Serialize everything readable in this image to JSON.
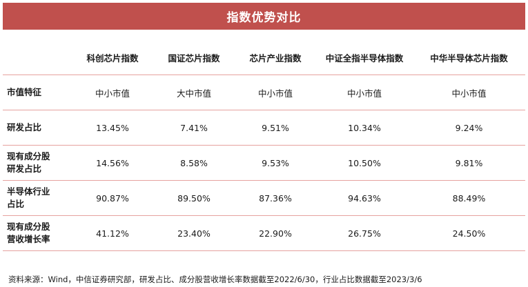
{
  "title": "指数优势对比",
  "table": {
    "corner": "",
    "columns": [
      "科创芯片指数",
      "国证芯片指数",
      "芯片产业指数",
      "中证全指半导体指数",
      "中华半导体芯片指数"
    ],
    "rows": [
      {
        "label": "市值特征",
        "values": [
          "中小市值",
          "大中市值",
          "中小市值",
          "中小市值",
          "中小市值"
        ]
      },
      {
        "label": "研发占比",
        "values": [
          "13.45%",
          "7.41%",
          "9.51%",
          "10.34%",
          "9.24%"
        ]
      },
      {
        "label": "现有成分股研发占比",
        "label_lines": [
          "现有成分股",
          "研发占比"
        ],
        "values": [
          "14.56%",
          "8.58%",
          "9.53%",
          "10.50%",
          "9.81%"
        ]
      },
      {
        "label": "半导体行业占比",
        "label_lines": [
          "半导体行业",
          "占比"
        ],
        "values": [
          "90.87%",
          "89.50%",
          "87.36%",
          "94.63%",
          "88.49%"
        ]
      },
      {
        "label": "现有成分股营收增长率",
        "label_lines": [
          "现有成分股",
          "营收增长率"
        ],
        "values": [
          "41.12%",
          "23.40%",
          "22.90%",
          "26.75%",
          "24.50%"
        ]
      }
    ]
  },
  "note": "资料来源：Wind，中信证券研究部，研发占比、成分股营收增长率数据截至2022/6/30，行业占比数据截至2023/3/6"
}
